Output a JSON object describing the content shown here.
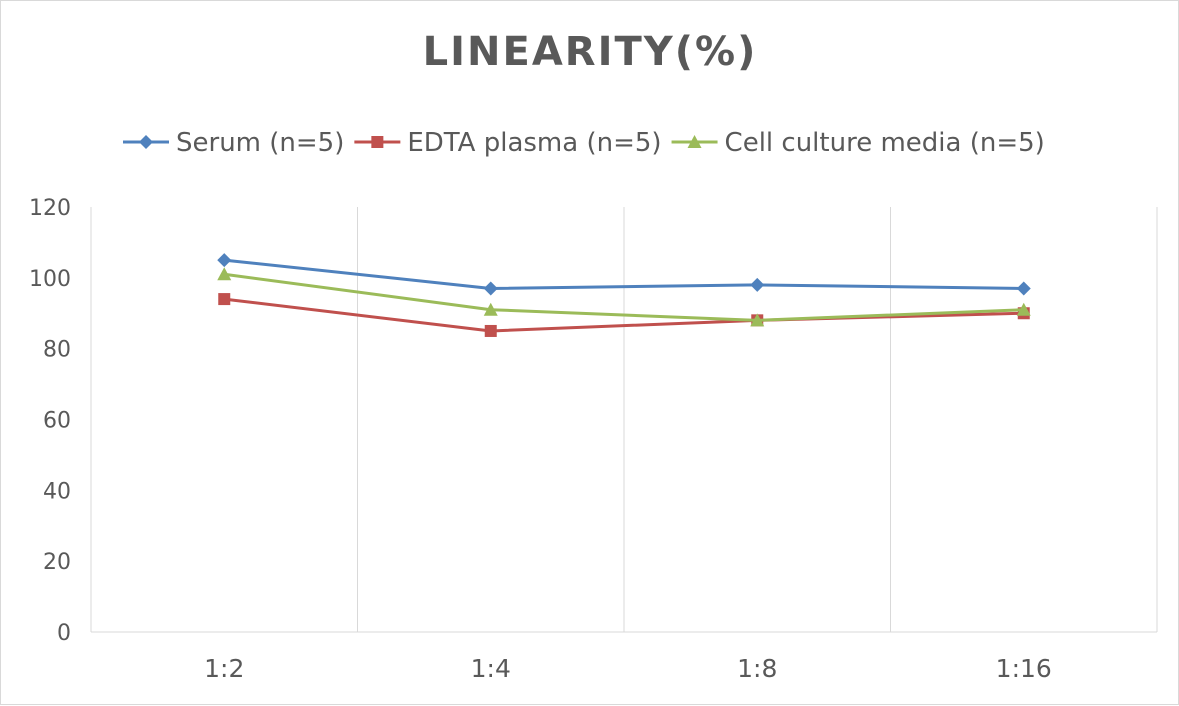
{
  "chart_data": {
    "type": "line",
    "title": "LINEARITY(%)",
    "xlabel": "",
    "ylabel": "",
    "categories": [
      "1:2",
      "1:4",
      "1:8",
      "1:16"
    ],
    "ylim": [
      0,
      120
    ],
    "yticks": [
      0,
      20,
      40,
      60,
      80,
      100,
      120
    ],
    "grid": "vertical",
    "legend": "top",
    "series": [
      {
        "name": "Serum (n=5)",
        "values": [
          105,
          97,
          98,
          97
        ],
        "color": "#4f81bd",
        "marker": "diamond"
      },
      {
        "name": "EDTA plasma (n=5)",
        "values": [
          94,
          85,
          88,
          90
        ],
        "color": "#c0504d",
        "marker": "square"
      },
      {
        "name": "Cell culture media (n=5)",
        "values": [
          101,
          91,
          88,
          91
        ],
        "color": "#9bbb59",
        "marker": "triangle"
      }
    ]
  }
}
